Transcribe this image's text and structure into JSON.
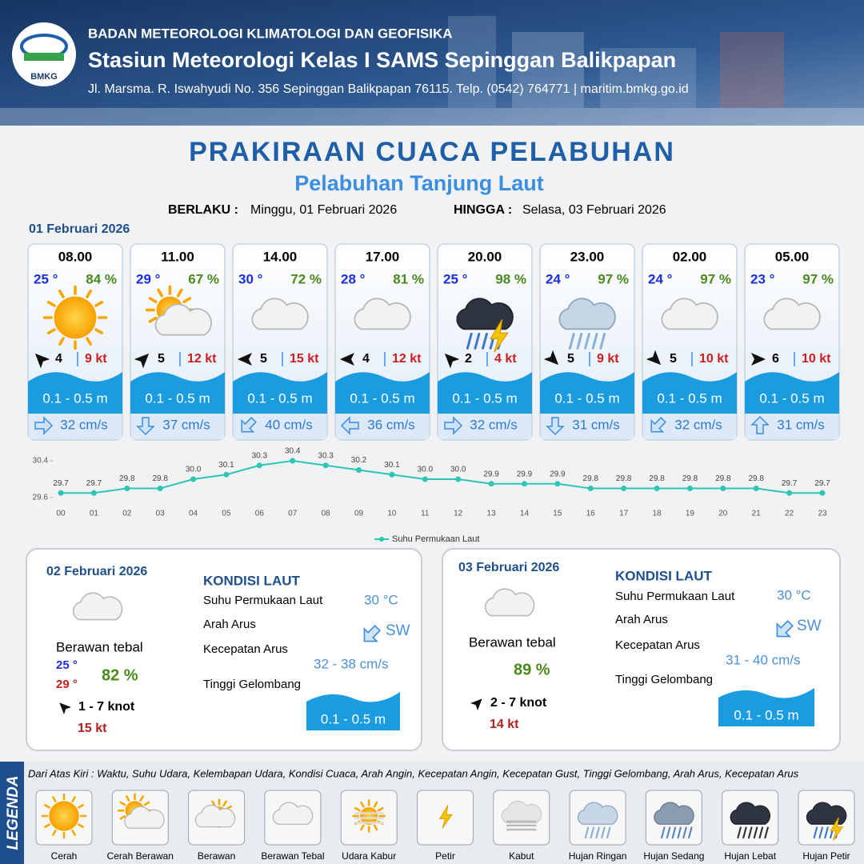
{
  "header": {
    "agency": "BADAN METEOROLOGI KLIMATOLOGI DAN GEOFISIKA",
    "station": "Stasiun Meteorologi Kelas I SAMS Sepinggan Balikpapan",
    "address": "Jl. Marsma. R. Iswahyudi No. 356 Sepinggan Balikpapan 76115. Telp. (0542) 764771 | maritim.bmkg.go.id",
    "logo": "BMKG"
  },
  "title": "PRAKIRAAN CUACA PELABUHAN",
  "subtitle": "Pelabuhan Tanjung Laut",
  "validity": {
    "from_label": "BERLAKU :",
    "from": "Minggu, 01 Februari 2026",
    "to_label": "HINGGA :",
    "to": "Selasa, 03 Februari 2026"
  },
  "today": {
    "date": "01 Februari 2026",
    "forecasts": [
      {
        "time": "08.00",
        "temp": "25 °",
        "humidity": "84 %",
        "wind": "4",
        "gust": "9 kt",
        "wave": "0.1 - 0.5 m",
        "current": "32 cm/s"
      },
      {
        "time": "11.00",
        "temp": "29 °",
        "humidity": "67 %",
        "wind": "5",
        "gust": "12 kt",
        "wave": "0.1 - 0.5 m",
        "current": "37 cm/s"
      },
      {
        "time": "14.00",
        "temp": "30 °",
        "humidity": "72 %",
        "wind": "5",
        "gust": "15 kt",
        "wave": "0.1 - 0.5 m",
        "current": "40 cm/s"
      },
      {
        "time": "17.00",
        "temp": "28 °",
        "humidity": "81 %",
        "wind": "4",
        "gust": "12 kt",
        "wave": "0.1 - 0.5 m",
        "current": "36 cm/s"
      },
      {
        "time": "20.00",
        "temp": "25 °",
        "humidity": "98 %",
        "wind": "2",
        "gust": "4 kt",
        "wave": "0.1 - 0.5 m",
        "current": "32 cm/s"
      },
      {
        "time": "23.00",
        "temp": "24 °",
        "humidity": "97 %",
        "wind": "5",
        "gust": "9 kt",
        "wave": "0.1 - 0.5 m",
        "current": "31 cm/s"
      },
      {
        "time": "02.00",
        "temp": "24 °",
        "humidity": "97 %",
        "wind": "5",
        "gust": "10 kt",
        "wave": "0.1 - 0.5 m",
        "current": "32 cm/s"
      },
      {
        "time": "05.00",
        "temp": "23 °",
        "humidity": "97 %",
        "wind": "6",
        "gust": "10 kt",
        "wave": "0.1 - 0.5 m",
        "current": "31 cm/s"
      }
    ]
  },
  "chart_data": {
    "type": "line",
    "categories": [
      "00",
      "01",
      "02",
      "03",
      "04",
      "05",
      "06",
      "07",
      "08",
      "09",
      "10",
      "11",
      "12",
      "13",
      "14",
      "15",
      "16",
      "17",
      "18",
      "19",
      "20",
      "21",
      "22",
      "23"
    ],
    "series": [
      {
        "name": "Suhu Permukaan Laut",
        "color": "#2ec4b6",
        "values": [
          29.7,
          29.7,
          29.8,
          29.8,
          30.0,
          30.1,
          30.3,
          30.4,
          30.3,
          30.2,
          30.1,
          30.0,
          30.0,
          29.9,
          29.9,
          29.9,
          29.8,
          29.8,
          29.8,
          29.8,
          29.8,
          29.8,
          29.7,
          29.7
        ],
        "value_labels": [
          "29.7",
          "29.7",
          "29.8",
          "29.8",
          "30.0",
          "30.1",
          "30.3",
          "30.4",
          "30.3",
          "30.2",
          "30.1",
          "30.0",
          "30.0",
          "29.9",
          "29.9",
          "29.9",
          "29.8",
          "29.8",
          "29.8",
          "29.8",
          "29.8",
          "29.8",
          "29.7",
          "29.7"
        ]
      }
    ],
    "ylim": [
      29.6,
      30.4
    ],
    "yticks": [
      29.6,
      30.4
    ],
    "legend": "bottom"
  },
  "outlook": [
    {
      "date": "02 Februari 2026",
      "condition": "Berawan tebal",
      "temp_min": "25 °",
      "temp_max": "29 °",
      "humidity": "82 %",
      "wind": "1  - 7 knot",
      "gust": "15 kt",
      "sea_title": "KONDISI LAUT",
      "sst_label": "Suhu Permukaan Laut",
      "sst": "30 °C",
      "current_dir_label": "Arah Arus",
      "current_dir": "SW",
      "current_speed_label": "Kecepatan Arus",
      "current_speed": "32  - 38 cm/s",
      "wave_label": "Tinggi Gelombang",
      "wave": "0.1 - 0.5 m"
    },
    {
      "date": "03 Februari 2026",
      "condition": "Berawan tebal",
      "humidity": "89 %",
      "wind": "2 - 7 knot",
      "gust": "14 kt",
      "sea_title": "KONDISI LAUT",
      "sst_label": "Suhu Permukaan Laut",
      "sst": "30 °C",
      "current_dir_label": "Arah Arus",
      "current_dir": "SW",
      "current_speed_label": "Kecepatan Arus",
      "current_speed": "31  - 40 cm/s",
      "wave_label": "Tinggi Gelombang",
      "wave": "0.1 - 0.5 m"
    }
  ],
  "legend": {
    "title": "LEGENDA",
    "description": "Dari Atas Kiri : Waktu, Suhu Udara, Kelembapan Udara, Kondisi Cuaca, Arah Angin, Kecepatan Angin, Kecepatan Gust, Tinggi Gelombang, Arah Arus, Kecepatan Arus",
    "items": [
      "Cerah",
      "Cerah Berawan",
      "Berawan",
      "Berawan Tebal",
      "Udara Kabur",
      "Petir",
      "Kabut",
      "Hujan Ringan",
      "Hujan Sedang",
      "Hujan Lebat",
      "Hujan Petir"
    ]
  }
}
